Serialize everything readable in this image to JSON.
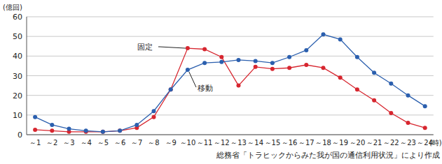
{
  "chart_data": {
    "type": "line",
    "y_label": "(億回)",
    "x_label": "(時)",
    "source": "総務省「トラヒックからみた我が国の通信利用状況」により作成",
    "categories": [
      "～1",
      "～2",
      "～3",
      "～4",
      "～5",
      "～6",
      "～7",
      "～8",
      "～9",
      "～10",
      "～11",
      "～12",
      "～13",
      "～14",
      "～15",
      "～16",
      "～17",
      "～18",
      "～19",
      "～20",
      "～21",
      "～22",
      "～23",
      "～24"
    ],
    "series": [
      {
        "name": "固定",
        "color": "#d7262f",
        "marker": "circle",
        "values": [
          2.5,
          2,
          1.5,
          1.5,
          1.5,
          2,
          3.5,
          9,
          23,
          44,
          43.5,
          39.5,
          25,
          34.5,
          33.5,
          34,
          35.5,
          34,
          29,
          23,
          17.5,
          11,
          6,
          3.5
        ]
      },
      {
        "name": "移動",
        "color": "#2b5fae",
        "marker": "circle",
        "values": [
          9,
          5,
          3,
          2,
          1.5,
          2,
          5,
          12,
          23,
          33,
          36.5,
          37,
          38,
          37.5,
          36.5,
          39.5,
          43,
          51,
          48.5,
          39.5,
          31.5,
          26,
          20,
          14.5
        ]
      }
    ],
    "ylim": [
      0,
      60
    ],
    "yticks": [
      0,
      10,
      20,
      30,
      40,
      50,
      60
    ],
    "grid": true
  }
}
